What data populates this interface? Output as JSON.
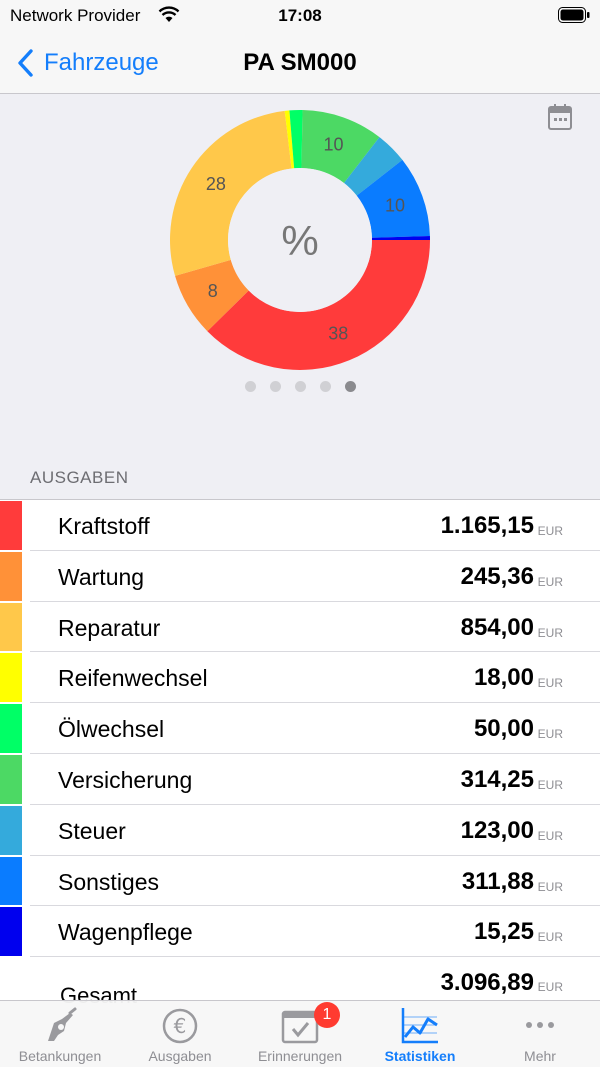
{
  "status_bar": {
    "carrier": "Network Provider",
    "time": "17:08"
  },
  "nav": {
    "back_label": "Fahrzeuge",
    "title": "PA SM000"
  },
  "chart_data": {
    "type": "pie",
    "center_label": "%",
    "segments": [
      {
        "category": "Kraftstoff",
        "value": 1165.15,
        "label": "38",
        "color": "#ff3b3b"
      },
      {
        "category": "Wartung",
        "value": 245.36,
        "label": "8",
        "color": "#ff9138"
      },
      {
        "category": "Reparatur",
        "value": 854.0,
        "label": "28",
        "color": "#ffc84a"
      },
      {
        "category": "Reifenwechsel",
        "value": 18.0,
        "label": "",
        "color": "#ffff00"
      },
      {
        "category": "Ölwechsel",
        "value": 50.0,
        "label": "",
        "color": "#00ff66"
      },
      {
        "category": "Versicherung",
        "value": 314.25,
        "label": "10",
        "color": "#4cd964"
      },
      {
        "category": "Steuer",
        "value": 123.0,
        "label": "",
        "color": "#34aadc"
      },
      {
        "category": "Sonstiges",
        "value": 311.88,
        "label": "10",
        "color": "#0a7cff"
      },
      {
        "category": "Wagenpflege",
        "value": 15.25,
        "label": "",
        "color": "#0000ee"
      }
    ]
  },
  "pager": {
    "count": 5,
    "active_index": 4
  },
  "section_header": "AUSGABEN",
  "expenses": [
    {
      "label": "Kraftstoff",
      "amount": "1.165,15",
      "unit": "EUR",
      "color": "#ff3b3b"
    },
    {
      "label": "Wartung",
      "amount": "245,36",
      "unit": "EUR",
      "color": "#ff9138"
    },
    {
      "label": "Reparatur",
      "amount": "854,00",
      "unit": "EUR",
      "color": "#ffc84a"
    },
    {
      "label": "Reifenwechsel",
      "amount": "18,00",
      "unit": "EUR",
      "color": "#ffff00"
    },
    {
      "label": "Ölwechsel",
      "amount": "50,00",
      "unit": "EUR",
      "color": "#00ff66"
    },
    {
      "label": "Versicherung",
      "amount": "314,25",
      "unit": "EUR",
      "color": "#4cd964"
    },
    {
      "label": "Steuer",
      "amount": "123,00",
      "unit": "EUR",
      "color": "#34aadc"
    },
    {
      "label": "Sonstiges",
      "amount": "311,88",
      "unit": "EUR",
      "color": "#0a7cff"
    },
    {
      "label": "Wagenpflege",
      "amount": "15,25",
      "unit": "EUR",
      "color": "#0000ee"
    }
  ],
  "total": {
    "label": "Gesamt",
    "amount": "3.096,89",
    "unit": "EUR"
  },
  "tabs": [
    {
      "label": "Betankungen",
      "icon": "fuel-nozzle-icon"
    },
    {
      "label": "Ausgaben",
      "icon": "euro-coin-icon"
    },
    {
      "label": "Erinnerungen",
      "icon": "calendar-check-icon",
      "badge": "1"
    },
    {
      "label": "Statistiken",
      "icon": "line-chart-icon",
      "active": true
    },
    {
      "label": "Mehr",
      "icon": "more-dots-icon"
    }
  ],
  "colors": {
    "accent": "#147efb",
    "badge": "#ff3b30"
  }
}
